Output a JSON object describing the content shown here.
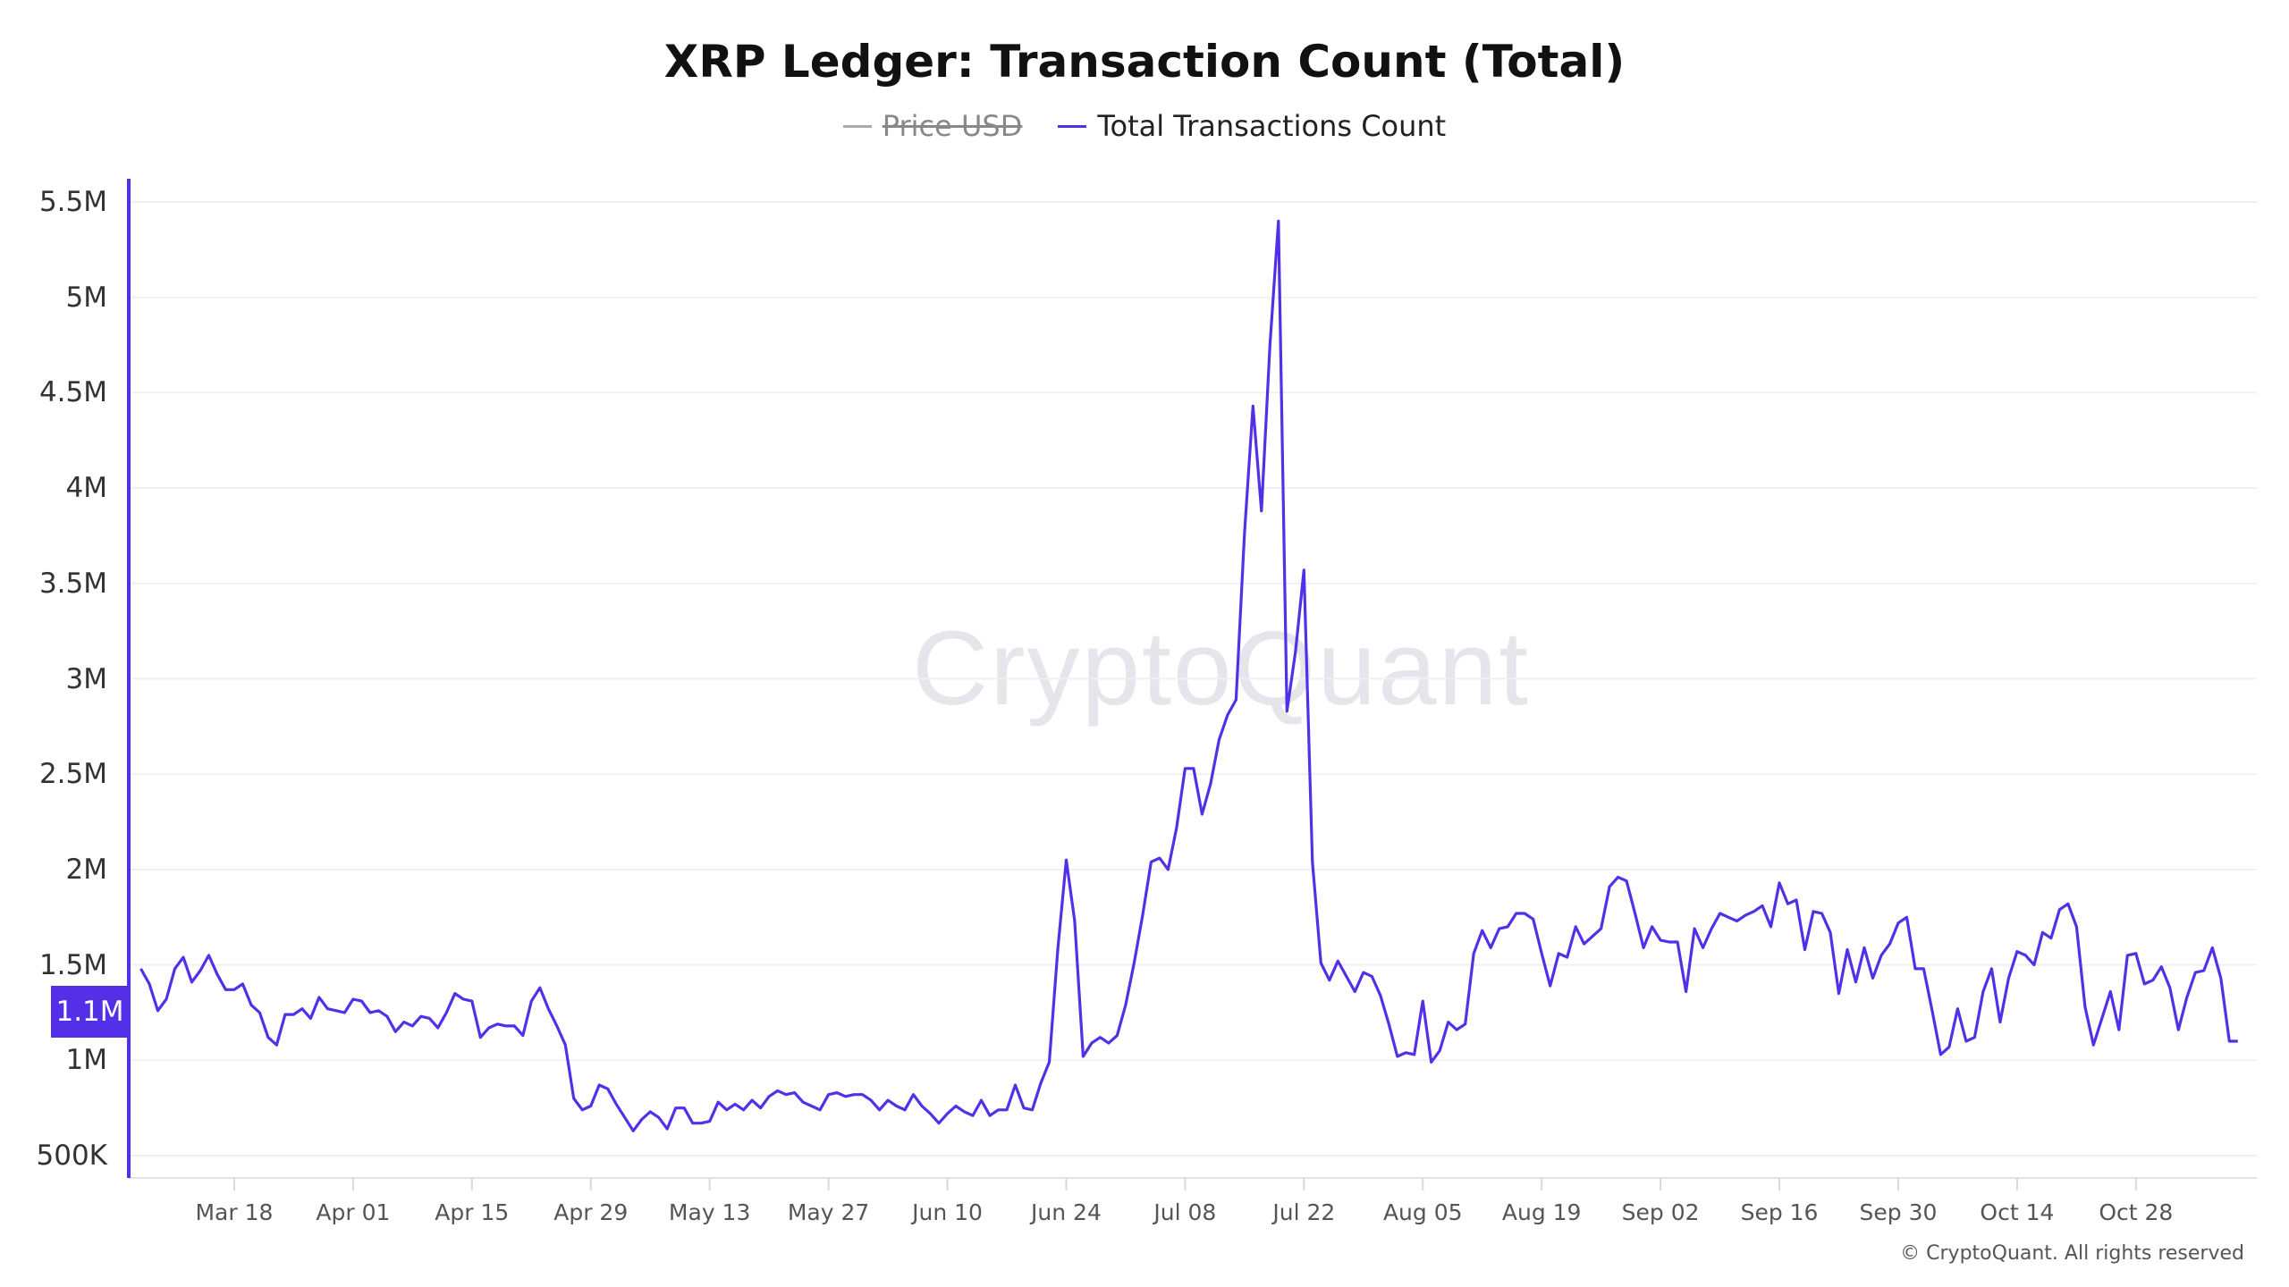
{
  "chart_data": {
    "type": "line",
    "title": "XRP Ledger: Transaction Count (Total)",
    "legend": [
      {
        "name": "Price USD",
        "color": "#999999",
        "hidden": true
      },
      {
        "name": "Total Transactions Count",
        "color": "#5330e8",
        "hidden": false
      }
    ],
    "legend_position": "top-center",
    "ylim": [
      0.5,
      5.5
    ],
    "y_unit": "M",
    "grid": true,
    "yticks": [
      {
        "label": "500K",
        "value": 0.5
      },
      {
        "label": "1M",
        "value": 1.0
      },
      {
        "label": "1.5M",
        "value": 1.5
      },
      {
        "label": "2M",
        "value": 2.0
      },
      {
        "label": "2.5M",
        "value": 2.5
      },
      {
        "label": "3M",
        "value": 3.0
      },
      {
        "label": "3.5M",
        "value": 3.5
      },
      {
        "label": "4M",
        "value": 4.0
      },
      {
        "label": "4.5M",
        "value": 4.5
      },
      {
        "label": "5M",
        "value": 5.0
      },
      {
        "label": "5.5M",
        "value": 5.5
      }
    ],
    "xticks": [
      "Mar 18",
      "Apr 01",
      "Apr 15",
      "Apr 29",
      "May 13",
      "May 27",
      "Jun 10",
      "Jun 24",
      "Jul 08",
      "Jul 22",
      "Aug 05",
      "Aug 19",
      "Sep 02",
      "Sep 16",
      "Sep 30",
      "Oct 14",
      "Oct 28"
    ],
    "x": [
      "Mar 07",
      "Mar 08",
      "Mar 09",
      "Mar 10",
      "Mar 11",
      "Mar 12",
      "Mar 13",
      "Mar 14",
      "Mar 15",
      "Mar 16",
      "Mar 17",
      "Mar 18",
      "Mar 19",
      "Mar 20",
      "Mar 21",
      "Mar 22",
      "Mar 23",
      "Mar 24",
      "Mar 25",
      "Mar 26",
      "Mar 27",
      "Mar 28",
      "Mar 29",
      "Mar 30",
      "Mar 31",
      "Apr 01",
      "Apr 02",
      "Apr 03",
      "Apr 04",
      "Apr 05",
      "Apr 06",
      "Apr 07",
      "Apr 08",
      "Apr 09",
      "Apr 10",
      "Apr 11",
      "Apr 12",
      "Apr 13",
      "Apr 14",
      "Apr 15",
      "Apr 16",
      "Apr 17",
      "Apr 18",
      "Apr 19",
      "Apr 20",
      "Apr 21",
      "Apr 22",
      "Apr 23",
      "Apr 24",
      "Apr 25",
      "Apr 26",
      "Apr 27",
      "Apr 28",
      "Apr 29",
      "Apr 30",
      "May 01",
      "May 02",
      "May 03",
      "May 04",
      "May 05",
      "May 06",
      "May 07",
      "May 08",
      "May 09",
      "May 10",
      "May 11",
      "May 12",
      "May 13",
      "May 14",
      "May 15",
      "May 16",
      "May 17",
      "May 18",
      "May 19",
      "May 20",
      "May 21",
      "May 22",
      "May 23",
      "May 24",
      "May 25",
      "May 26",
      "May 27",
      "May 28",
      "May 29",
      "May 30",
      "May 31",
      "Jun 01",
      "Jun 02",
      "Jun 03",
      "Jun 04",
      "Jun 05",
      "Jun 06",
      "Jun 07",
      "Jun 08",
      "Jun 09",
      "Jun 10",
      "Jun 11",
      "Jun 12",
      "Jun 13",
      "Jun 14",
      "Jun 15",
      "Jun 16",
      "Jun 17",
      "Jun 18",
      "Jun 19",
      "Jun 20",
      "Jun 21",
      "Jun 22",
      "Jun 23",
      "Jun 24",
      "Jun 25",
      "Jun 26",
      "Jun 27",
      "Jun 28",
      "Jun 29",
      "Jun 30",
      "Jul 01",
      "Jul 02",
      "Jul 03",
      "Jul 04",
      "Jul 05",
      "Jul 06",
      "Jul 07",
      "Jul 08",
      "Jul 09",
      "Jul 10",
      "Jul 11",
      "Jul 12",
      "Jul 13",
      "Jul 14",
      "Jul 15",
      "Jul 16",
      "Jul 17",
      "Jul 18",
      "Jul 19",
      "Jul 20",
      "Jul 21",
      "Jul 22",
      "Jul 23",
      "Jul 24",
      "Jul 25",
      "Jul 26",
      "Jul 27",
      "Jul 28",
      "Jul 29",
      "Jul 30",
      "Jul 31",
      "Aug 01",
      "Aug 02",
      "Aug 03",
      "Aug 04",
      "Aug 05",
      "Aug 06",
      "Aug 07",
      "Aug 08",
      "Aug 09",
      "Aug 10",
      "Aug 11",
      "Aug 12",
      "Aug 13",
      "Aug 14",
      "Aug 15",
      "Aug 16",
      "Aug 17",
      "Aug 18",
      "Aug 19",
      "Aug 20",
      "Aug 21",
      "Aug 22",
      "Aug 23",
      "Aug 24",
      "Aug 25",
      "Aug 26",
      "Aug 27",
      "Aug 28",
      "Aug 29",
      "Aug 30",
      "Aug 31",
      "Sep 01",
      "Sep 02",
      "Sep 03",
      "Sep 04",
      "Sep 05",
      "Sep 06",
      "Sep 07",
      "Sep 08",
      "Sep 09",
      "Sep 10",
      "Sep 11",
      "Sep 12",
      "Sep 13",
      "Sep 14",
      "Sep 15",
      "Sep 16",
      "Sep 17",
      "Sep 18",
      "Sep 19",
      "Sep 20",
      "Sep 21",
      "Sep 22",
      "Sep 23",
      "Sep 24",
      "Sep 25",
      "Sep 26",
      "Sep 27",
      "Sep 28",
      "Sep 29",
      "Sep 30",
      "Oct 01",
      "Oct 02",
      "Oct 03",
      "Oct 04",
      "Oct 05",
      "Oct 06",
      "Oct 07",
      "Oct 08",
      "Oct 09",
      "Oct 10",
      "Oct 11",
      "Oct 12",
      "Oct 13",
      "Oct 14",
      "Oct 15",
      "Oct 16",
      "Oct 17",
      "Oct 18",
      "Oct 19",
      "Oct 20",
      "Oct 21",
      "Oct 22",
      "Oct 23",
      "Oct 24",
      "Oct 25",
      "Oct 26",
      "Oct 27",
      "Oct 28",
      "Oct 29",
      "Oct 30",
      "Oct 31",
      "Nov 01",
      "Nov 02",
      "Nov 03",
      "Nov 04",
      "Nov 05",
      "Nov 06",
      "Nov 07",
      "Nov 08",
      "Nov 09"
    ],
    "series": [
      {
        "name": "Total Transactions Count",
        "unit": "M",
        "values": [
          1.48,
          1.4,
          1.26,
          1.32,
          1.48,
          1.54,
          1.41,
          1.47,
          1.55,
          1.45,
          1.37,
          1.37,
          1.4,
          1.29,
          1.25,
          1.12,
          1.08,
          1.24,
          1.24,
          1.27,
          1.22,
          1.33,
          1.27,
          1.26,
          1.25,
          1.32,
          1.31,
          1.25,
          1.26,
          1.23,
          1.15,
          1.2,
          1.18,
          1.23,
          1.22,
          1.17,
          1.25,
          1.35,
          1.32,
          1.31,
          1.12,
          1.17,
          1.19,
          1.18,
          1.18,
          1.13,
          1.31,
          1.38,
          1.27,
          1.18,
          1.08,
          0.8,
          0.74,
          0.76,
          0.87,
          0.85,
          0.77,
          0.7,
          0.63,
          0.69,
          0.73,
          0.7,
          0.64,
          0.75,
          0.75,
          0.67,
          0.67,
          0.68,
          0.78,
          0.74,
          0.77,
          0.74,
          0.79,
          0.75,
          0.81,
          0.84,
          0.82,
          0.83,
          0.78,
          0.76,
          0.74,
          0.82,
          0.83,
          0.81,
          0.82,
          0.82,
          0.79,
          0.74,
          0.79,
          0.76,
          0.74,
          0.82,
          0.76,
          0.72,
          0.67,
          0.72,
          0.76,
          0.73,
          0.71,
          0.79,
          0.71,
          0.74,
          0.74,
          0.87,
          0.75,
          0.74,
          0.88,
          0.99,
          1.58,
          2.05,
          1.73,
          1.02,
          1.09,
          1.12,
          1.09,
          1.13,
          1.29,
          1.51,
          1.76,
          2.04,
          2.06,
          2.0,
          2.22,
          2.53,
          2.53,
          2.29,
          2.45,
          2.68,
          2.81,
          2.89,
          3.76,
          4.43,
          3.88,
          4.75,
          5.4,
          2.83,
          3.14,
          3.57,
          2.04,
          1.51,
          1.42,
          1.52,
          1.44,
          1.36,
          1.46,
          1.44,
          1.34,
          1.19,
          1.02,
          1.04,
          1.03,
          1.31,
          0.99,
          1.05,
          1.2,
          1.16,
          1.19,
          1.56,
          1.68,
          1.59,
          1.69,
          1.7,
          1.77,
          1.77,
          1.74,
          1.56,
          1.39,
          1.56,
          1.54,
          1.7,
          1.61,
          1.65,
          1.69,
          1.91,
          1.96,
          1.94,
          1.77,
          1.59,
          1.7,
          1.63,
          1.62,
          1.62,
          1.36,
          1.69,
          1.59,
          1.69,
          1.77,
          1.75,
          1.73,
          1.76,
          1.78,
          1.81,
          1.7,
          1.93,
          1.82,
          1.84,
          1.58,
          1.78,
          1.77,
          1.67,
          1.35,
          1.58,
          1.41,
          1.59,
          1.43,
          1.55,
          1.61,
          1.72,
          1.75,
          1.48,
          1.48,
          1.26,
          1.03,
          1.07,
          1.27,
          1.1,
          1.12,
          1.36,
          1.48,
          1.2,
          1.43,
          1.57,
          1.55,
          1.5,
          1.67,
          1.64,
          1.79,
          1.82,
          1.7,
          1.28,
          1.08,
          1.22,
          1.36,
          1.16,
          1.55,
          1.56,
          1.4,
          1.42,
          1.49,
          1.38,
          1.16,
          1.33,
          1.46,
          1.47,
          1.59,
          1.43,
          1.1,
          1.1
        ]
      }
    ],
    "last_value_label": "1.1M"
  },
  "watermark": "CryptoQuant",
  "footer": "© CryptoQuant. All rights reserved"
}
